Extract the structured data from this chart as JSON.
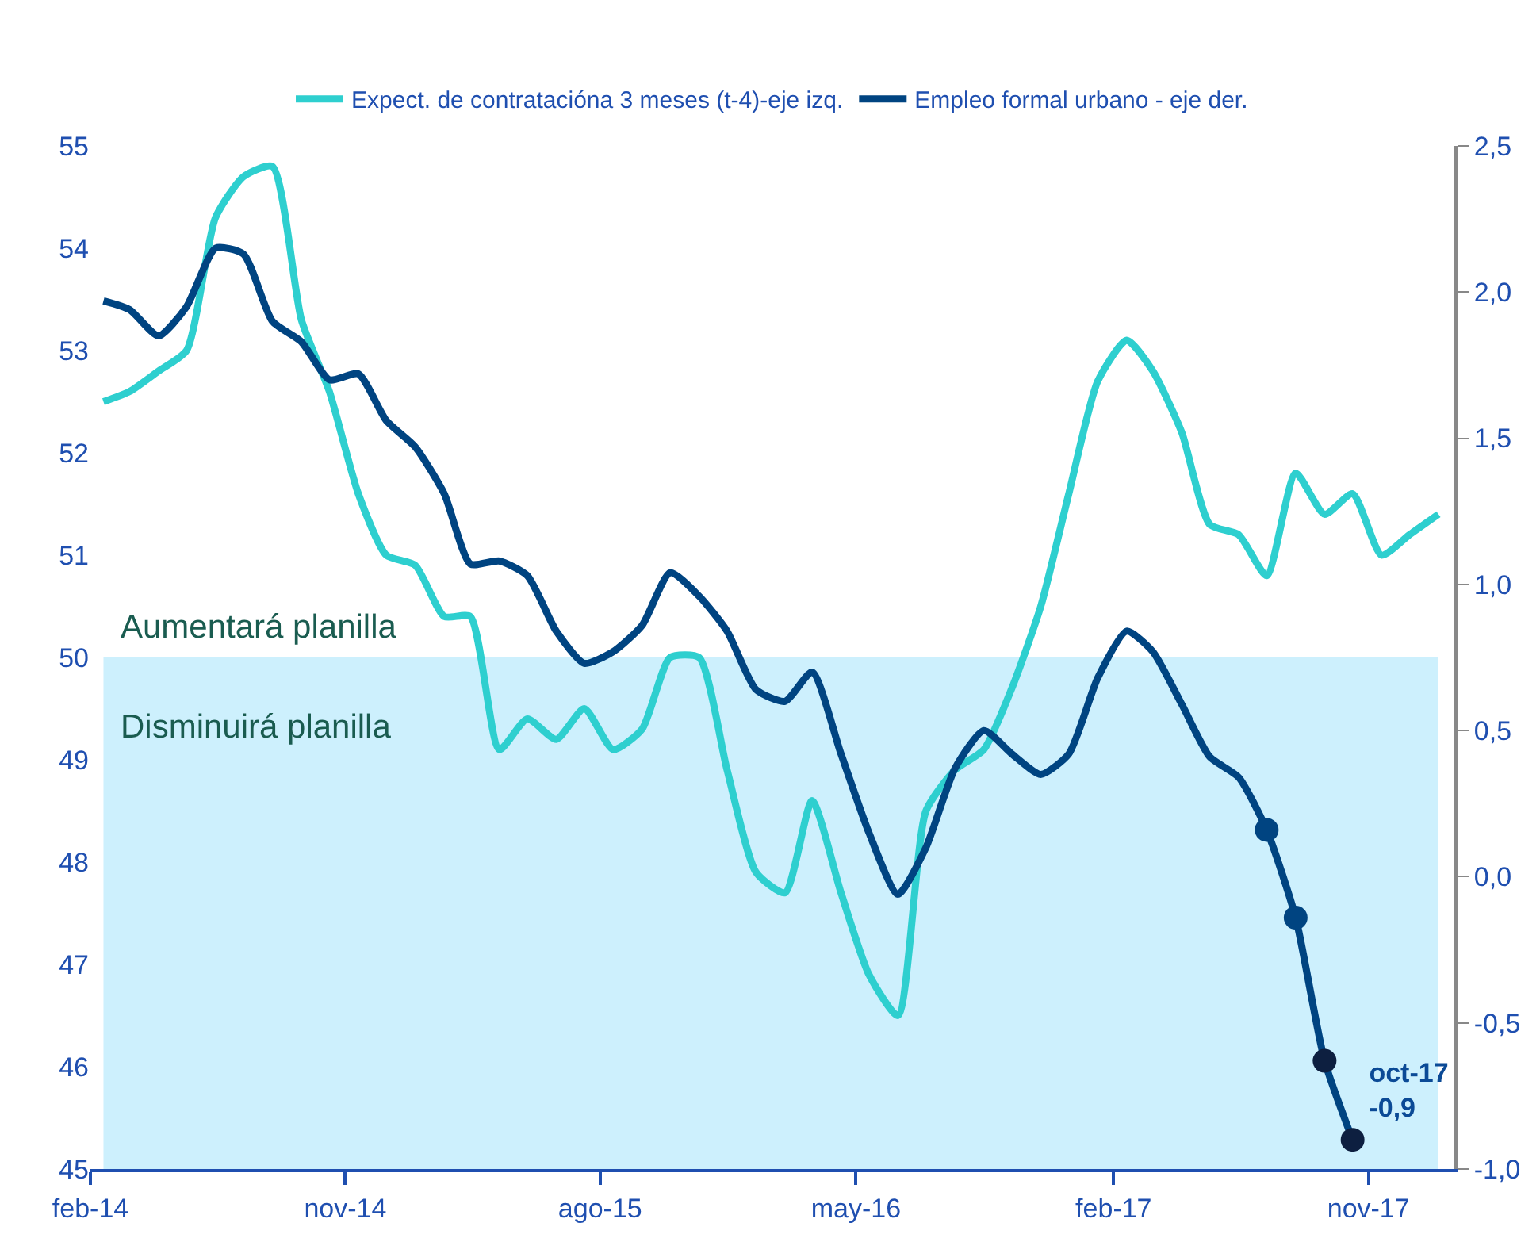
{
  "chart_data": {
    "type": "line",
    "legend": "top",
    "grid": false,
    "line_style": "solid",
    "marker": "none",
    "xlim": [
      "2014-02-01",
      "2018-02-01"
    ],
    "xticks": [
      {
        "value": "2014-02-01",
        "label": "feb-14"
      },
      {
        "value": "2014-11-01",
        "label": "nov-14"
      },
      {
        "value": "2015-08-01",
        "label": "ago-15"
      },
      {
        "value": "2016-05-01",
        "label": "may-16"
      },
      {
        "value": "2017-02-01",
        "label": "feb-17"
      },
      {
        "value": "2017-11-01",
        "label": "nov-17"
      }
    ],
    "ylim": [
      45,
      55
    ],
    "yticks": [
      45,
      46,
      47,
      48,
      49,
      50,
      51,
      52,
      53,
      54,
      55
    ],
    "y2lim": [
      -1.0,
      2.5
    ],
    "y2ticks": [
      {
        "value": -1.0,
        "label": "-1,0"
      },
      {
        "value": -0.5,
        "label": "-0,5"
      },
      {
        "value": 0.0,
        "label": "0,0"
      },
      {
        "value": 0.5,
        "label": "0,5"
      },
      {
        "value": 1.0,
        "label": "1,0"
      },
      {
        "value": 1.5,
        "label": "1,5"
      },
      {
        "value": 2.0,
        "label": "2,0"
      },
      {
        "value": 2.5,
        "label": "2,5"
      }
    ],
    "bands": [
      {
        "axis": "y",
        "from": 45,
        "to": 50,
        "color": "#cdf0fd"
      }
    ],
    "annotations": [
      "Aumentará planilla",
      "Disminuirá planilla"
    ],
    "series": [
      {
        "name": "Expect. de contratacióna 3 meses (t-4)-eje izq.",
        "color": "#2ecfcf",
        "x": [
          "2014-02-15",
          "2014-03-15",
          "2014-04-15",
          "2014-05-15",
          "2014-06-15",
          "2014-07-15",
          "2014-08-15",
          "2014-09-15",
          "2014-10-15",
          "2014-11-15",
          "2014-12-15",
          "2015-01-15",
          "2015-02-15",
          "2015-03-15",
          "2015-04-15",
          "2015-05-15",
          "2015-06-15",
          "2015-07-15",
          "2015-08-15",
          "2015-09-15",
          "2015-10-15",
          "2015-11-15",
          "2015-12-15",
          "2016-01-15",
          "2016-02-15",
          "2016-03-15",
          "2016-04-15",
          "2016-05-15",
          "2016-06-15",
          "2016-07-15",
          "2016-08-15",
          "2016-09-15",
          "2016-10-15",
          "2016-11-15",
          "2016-12-15",
          "2017-01-15",
          "2017-02-15",
          "2017-03-15",
          "2017-04-15",
          "2017-05-15",
          "2017-06-15",
          "2017-07-15",
          "2017-08-15",
          "2017-09-15",
          "2017-10-15",
          "2017-11-15",
          "2017-12-15",
          "2018-01-15"
        ],
        "values": [
          52.5,
          52.6,
          52.8,
          53.0,
          54.3,
          54.7,
          54.8,
          53.3,
          52.6,
          51.6,
          51.0,
          50.9,
          50.4,
          50.4,
          49.1,
          49.4,
          49.2,
          49.5,
          49.1,
          49.3,
          50.0,
          50.0,
          48.9,
          47.9,
          47.7,
          48.6,
          47.7,
          46.9,
          46.5,
          48.5,
          48.9,
          49.1,
          49.7,
          50.5,
          51.6,
          52.7,
          53.1,
          52.8,
          52.2,
          51.3,
          51.2,
          50.8,
          51.8,
          51.4,
          51.6,
          51.0,
          51.2,
          51.4
        ]
      },
      {
        "name": "Empleo formal urbano - eje der.",
        "color": "#004481",
        "axis": "y2",
        "x": [
          "2014-02-15",
          "2014-03-15",
          "2014-04-15",
          "2014-05-15",
          "2014-06-15",
          "2014-07-15",
          "2014-08-15",
          "2014-09-15",
          "2014-10-15",
          "2014-11-15",
          "2014-12-15",
          "2015-01-15",
          "2015-02-15",
          "2015-03-15",
          "2015-04-15",
          "2015-05-15",
          "2015-06-15",
          "2015-07-15",
          "2015-08-15",
          "2015-09-15",
          "2015-10-15",
          "2015-11-15",
          "2015-12-15",
          "2016-01-15",
          "2016-02-15",
          "2016-03-15",
          "2016-04-15",
          "2016-05-15",
          "2016-06-15",
          "2016-07-15",
          "2016-08-15",
          "2016-09-15",
          "2016-10-15",
          "2016-11-15",
          "2016-12-15",
          "2017-01-15",
          "2017-02-15",
          "2017-03-15",
          "2017-04-15",
          "2017-05-15",
          "2017-06-15",
          "2017-07-15",
          "2017-08-15",
          "2017-09-15",
          "2017-10-15"
        ],
        "values": [
          1.97,
          1.94,
          1.85,
          1.95,
          2.15,
          2.13,
          1.9,
          1.83,
          1.7,
          1.72,
          1.56,
          1.47,
          1.31,
          1.07,
          1.08,
          1.03,
          0.84,
          0.73,
          0.77,
          0.86,
          1.04,
          0.96,
          0.84,
          0.64,
          0.6,
          0.7,
          0.42,
          0.15,
          -0.06,
          0.1,
          0.37,
          0.5,
          0.42,
          0.35,
          0.42,
          0.68,
          0.84,
          0.77,
          0.59,
          0.41,
          0.34,
          0.16,
          -0.14,
          -0.63,
          -0.9
        ]
      },
      {
        "type": "scatter",
        "marker": "circle",
        "axis": "y2",
        "x": [
          "2017-07-15",
          "2017-08-15",
          "2017-09-15",
          "2017-10-15"
        ],
        "values": [
          0.16,
          -0.14,
          -0.63,
          -0.9
        ],
        "colors": [
          "#004481",
          "#004481",
          "#0d1f40",
          "#0d1f40"
        ],
        "value_labels": [
          null,
          null,
          null,
          "oct-17\n-0,9"
        ]
      }
    ]
  }
}
